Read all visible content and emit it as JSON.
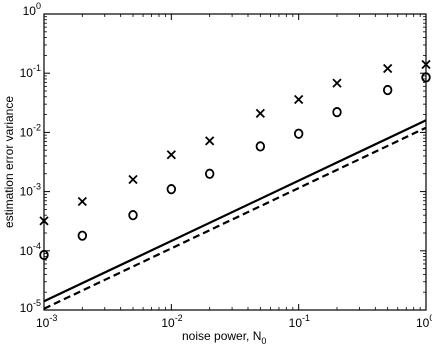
{
  "chart_data": {
    "type": "scatter",
    "title": "",
    "xlabel": "noise power, N",
    "xlabel_subscript": "0",
    "ylabel": "estimation error variance",
    "x_scale": "log",
    "y_scale": "log",
    "xlim": [
      0.001,
      1
    ],
    "ylim": [
      1e-05,
      1
    ],
    "grid": false,
    "x_ticks": [
      {
        "base": "10",
        "exp": "-3",
        "value": 0.001
      },
      {
        "base": "10",
        "exp": "-2",
        "value": 0.01
      },
      {
        "base": "10",
        "exp": "-1",
        "value": 0.1
      },
      {
        "base": "10",
        "exp": "0",
        "value": 1
      }
    ],
    "y_ticks": [
      {
        "base": "10",
        "exp": "-5",
        "value": 1e-05
      },
      {
        "base": "10",
        "exp": "-4",
        "value": 0.0001
      },
      {
        "base": "10",
        "exp": "-3",
        "value": 0.001
      },
      {
        "base": "10",
        "exp": "-2",
        "value": 0.01
      },
      {
        "base": "10",
        "exp": "-1",
        "value": 0.1
      },
      {
        "base": "10",
        "exp": "0",
        "value": 1
      }
    ],
    "series": [
      {
        "marker": "x",
        "color": "#000000",
        "x": [
          0.001,
          0.002,
          0.005,
          0.01,
          0.02,
          0.05,
          0.1,
          0.2,
          0.5,
          1
        ],
        "y": [
          0.00032,
          0.00068,
          0.0016,
          0.0042,
          0.0072,
          0.021,
          0.036,
          0.068,
          0.12,
          0.14
        ]
      },
      {
        "marker": "o",
        "color": "#000000",
        "x": [
          0.001,
          0.002,
          0.005,
          0.01,
          0.02,
          0.05,
          0.1,
          0.2,
          0.5,
          1
        ],
        "y": [
          8.5e-05,
          0.00018,
          0.0004,
          0.0011,
          0.002,
          0.0058,
          0.0095,
          0.022,
          0.052,
          0.085
        ]
      },
      {
        "line_style": "solid",
        "color": "#000000",
        "x": [
          0.001,
          1
        ],
        "y": [
          1.4e-05,
          0.016
        ]
      },
      {
        "line_style": "dashed",
        "color": "#000000",
        "x": [
          0.001,
          1
        ],
        "y": [
          1.05e-05,
          0.012
        ]
      }
    ]
  }
}
